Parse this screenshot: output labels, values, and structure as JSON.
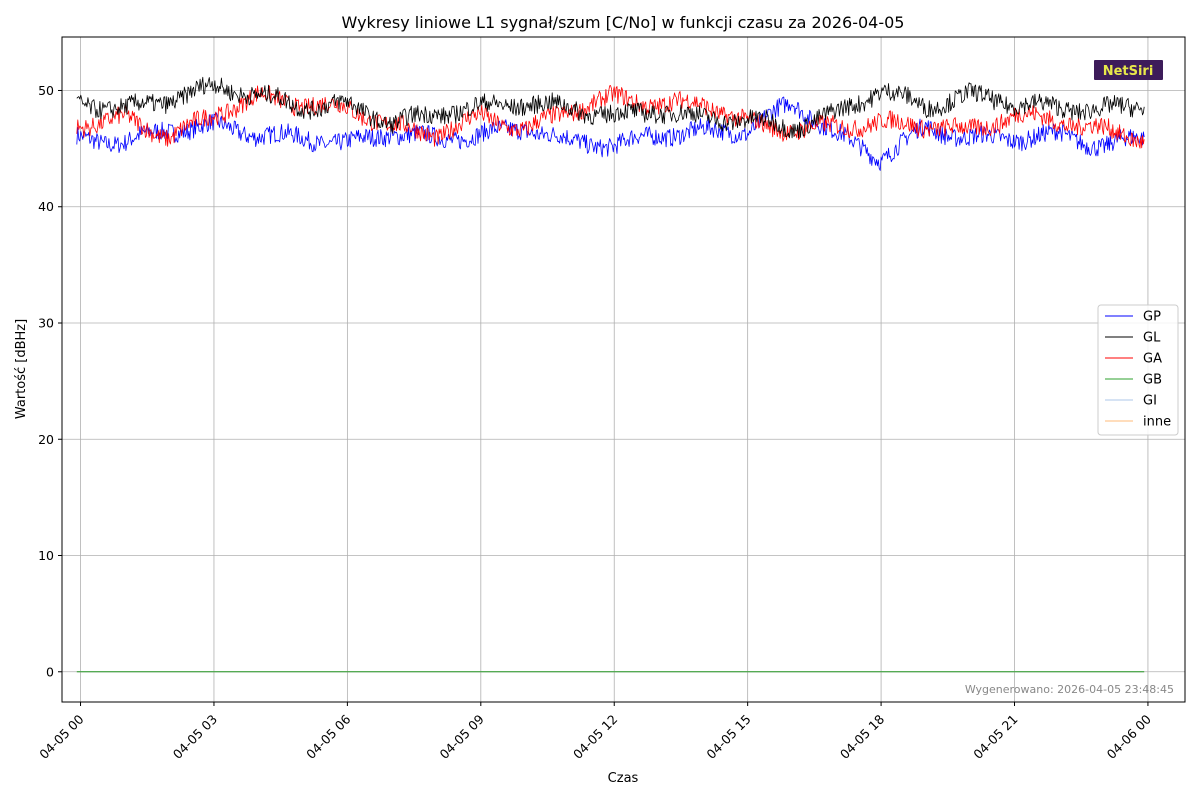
{
  "chart_data": {
    "type": "line",
    "title": "Wykresy liniowe L1 sygnał/szum [C/No] w funkcji czasu za 2026-04-05",
    "xlabel": "Czas",
    "ylabel": "Wartość [dBHz]",
    "x_range": [
      "2026-04-04 23:35",
      "2026-04-06 00:50"
    ],
    "ylim": [
      -2.6,
      54.6
    ],
    "y_ticks": [
      0,
      10,
      20,
      30,
      40,
      50
    ],
    "x_ticks": [
      {
        "t": "2026-04-05 00:00",
        "label": "04-05 00"
      },
      {
        "t": "2026-04-05 03:00",
        "label": "04-05 03"
      },
      {
        "t": "2026-04-05 06:00",
        "label": "04-05 06"
      },
      {
        "t": "2026-04-05 09:00",
        "label": "04-05 09"
      },
      {
        "t": "2026-04-05 12:00",
        "label": "04-05 12"
      },
      {
        "t": "2026-04-05 15:00",
        "label": "04-05 15"
      },
      {
        "t": "2026-04-05 18:00",
        "label": "04-05 18"
      },
      {
        "t": "2026-04-05 21:00",
        "label": "04-05 21"
      },
      {
        "t": "2026-04-06 00:00",
        "label": "04-06 00"
      }
    ],
    "grid": true,
    "legend_position": "right",
    "x": [
      "2026-04-04 23:55",
      "2026-04-05 01:00",
      "2026-04-05 02:00",
      "2026-04-05 03:00",
      "2026-04-05 04:00",
      "2026-04-05 05:00",
      "2026-04-05 06:00",
      "2026-04-05 07:00",
      "2026-04-05 08:00",
      "2026-04-05 09:00",
      "2026-04-05 10:00",
      "2026-04-05 11:00",
      "2026-04-05 12:00",
      "2026-04-05 13:00",
      "2026-04-05 14:00",
      "2026-04-05 15:00",
      "2026-04-05 16:00",
      "2026-04-05 17:00",
      "2026-04-05 18:00",
      "2026-04-05 19:00",
      "2026-04-05 20:00",
      "2026-04-05 21:00",
      "2026-04-05 22:00",
      "2026-04-05 23:00",
      "2026-04-05 23:55"
    ],
    "series": [
      {
        "name": "GP",
        "color": "#0000ff",
        "values": [
          45.8,
          45.6,
          46.6,
          47.0,
          46.2,
          45.9,
          45.4,
          46.4,
          45.8,
          46.2,
          46.8,
          45.6,
          45.3,
          46.2,
          46.5,
          46.5,
          49.0,
          46.2,
          44.2,
          46.8,
          45.9,
          45.9,
          46.2,
          45.2,
          46.0
        ]
      },
      {
        "name": "GL",
        "color": "#000000",
        "values": [
          48.9,
          48.4,
          49.2,
          50.4,
          49.6,
          48.6,
          48.8,
          47.2,
          48.0,
          48.6,
          48.9,
          48.5,
          47.8,
          48.3,
          47.6,
          47.5,
          46.8,
          48.0,
          50.1,
          48.6,
          49.6,
          48.9,
          48.5,
          48.4,
          48.6
        ]
      },
      {
        "name": "GA",
        "color": "#ff0000",
        "values": [
          47.0,
          47.6,
          46.0,
          47.9,
          49.5,
          48.8,
          48.5,
          46.9,
          46.2,
          47.8,
          46.6,
          48.3,
          49.4,
          48.8,
          48.9,
          47.2,
          46.6,
          46.9,
          47.2,
          47.0,
          46.5,
          47.9,
          47.4,
          46.6,
          45.8
        ]
      },
      {
        "name": "GB",
        "color": "#2ca02c",
        "values": [
          0,
          0,
          0,
          0,
          0,
          0,
          0,
          0,
          0,
          0,
          0,
          0,
          0,
          0,
          0,
          0,
          0,
          0,
          0,
          0,
          0,
          0,
          0,
          0,
          0
        ]
      },
      {
        "name": "GI",
        "color": "#aec7e8",
        "values": [
          0,
          0,
          0,
          0,
          0,
          0,
          0,
          0,
          0,
          0,
          0,
          0,
          0,
          0,
          0,
          0,
          0,
          0,
          0,
          0,
          0,
          0,
          0,
          0,
          0
        ]
      },
      {
        "name": "inne",
        "color": "#ffbb78",
        "values": [
          0,
          0,
          0,
          0,
          0,
          0,
          0,
          0,
          0,
          0,
          0,
          0,
          0,
          0,
          0,
          0,
          0,
          0,
          0,
          0,
          0,
          0,
          0,
          0,
          0
        ]
      }
    ],
    "footnote": "Wygenerowano: 2026-04-05 23:48:45",
    "badge": {
      "text": "NetSiri",
      "bg_color": "#3d1c5a",
      "text_color": "#e8e84a"
    }
  }
}
